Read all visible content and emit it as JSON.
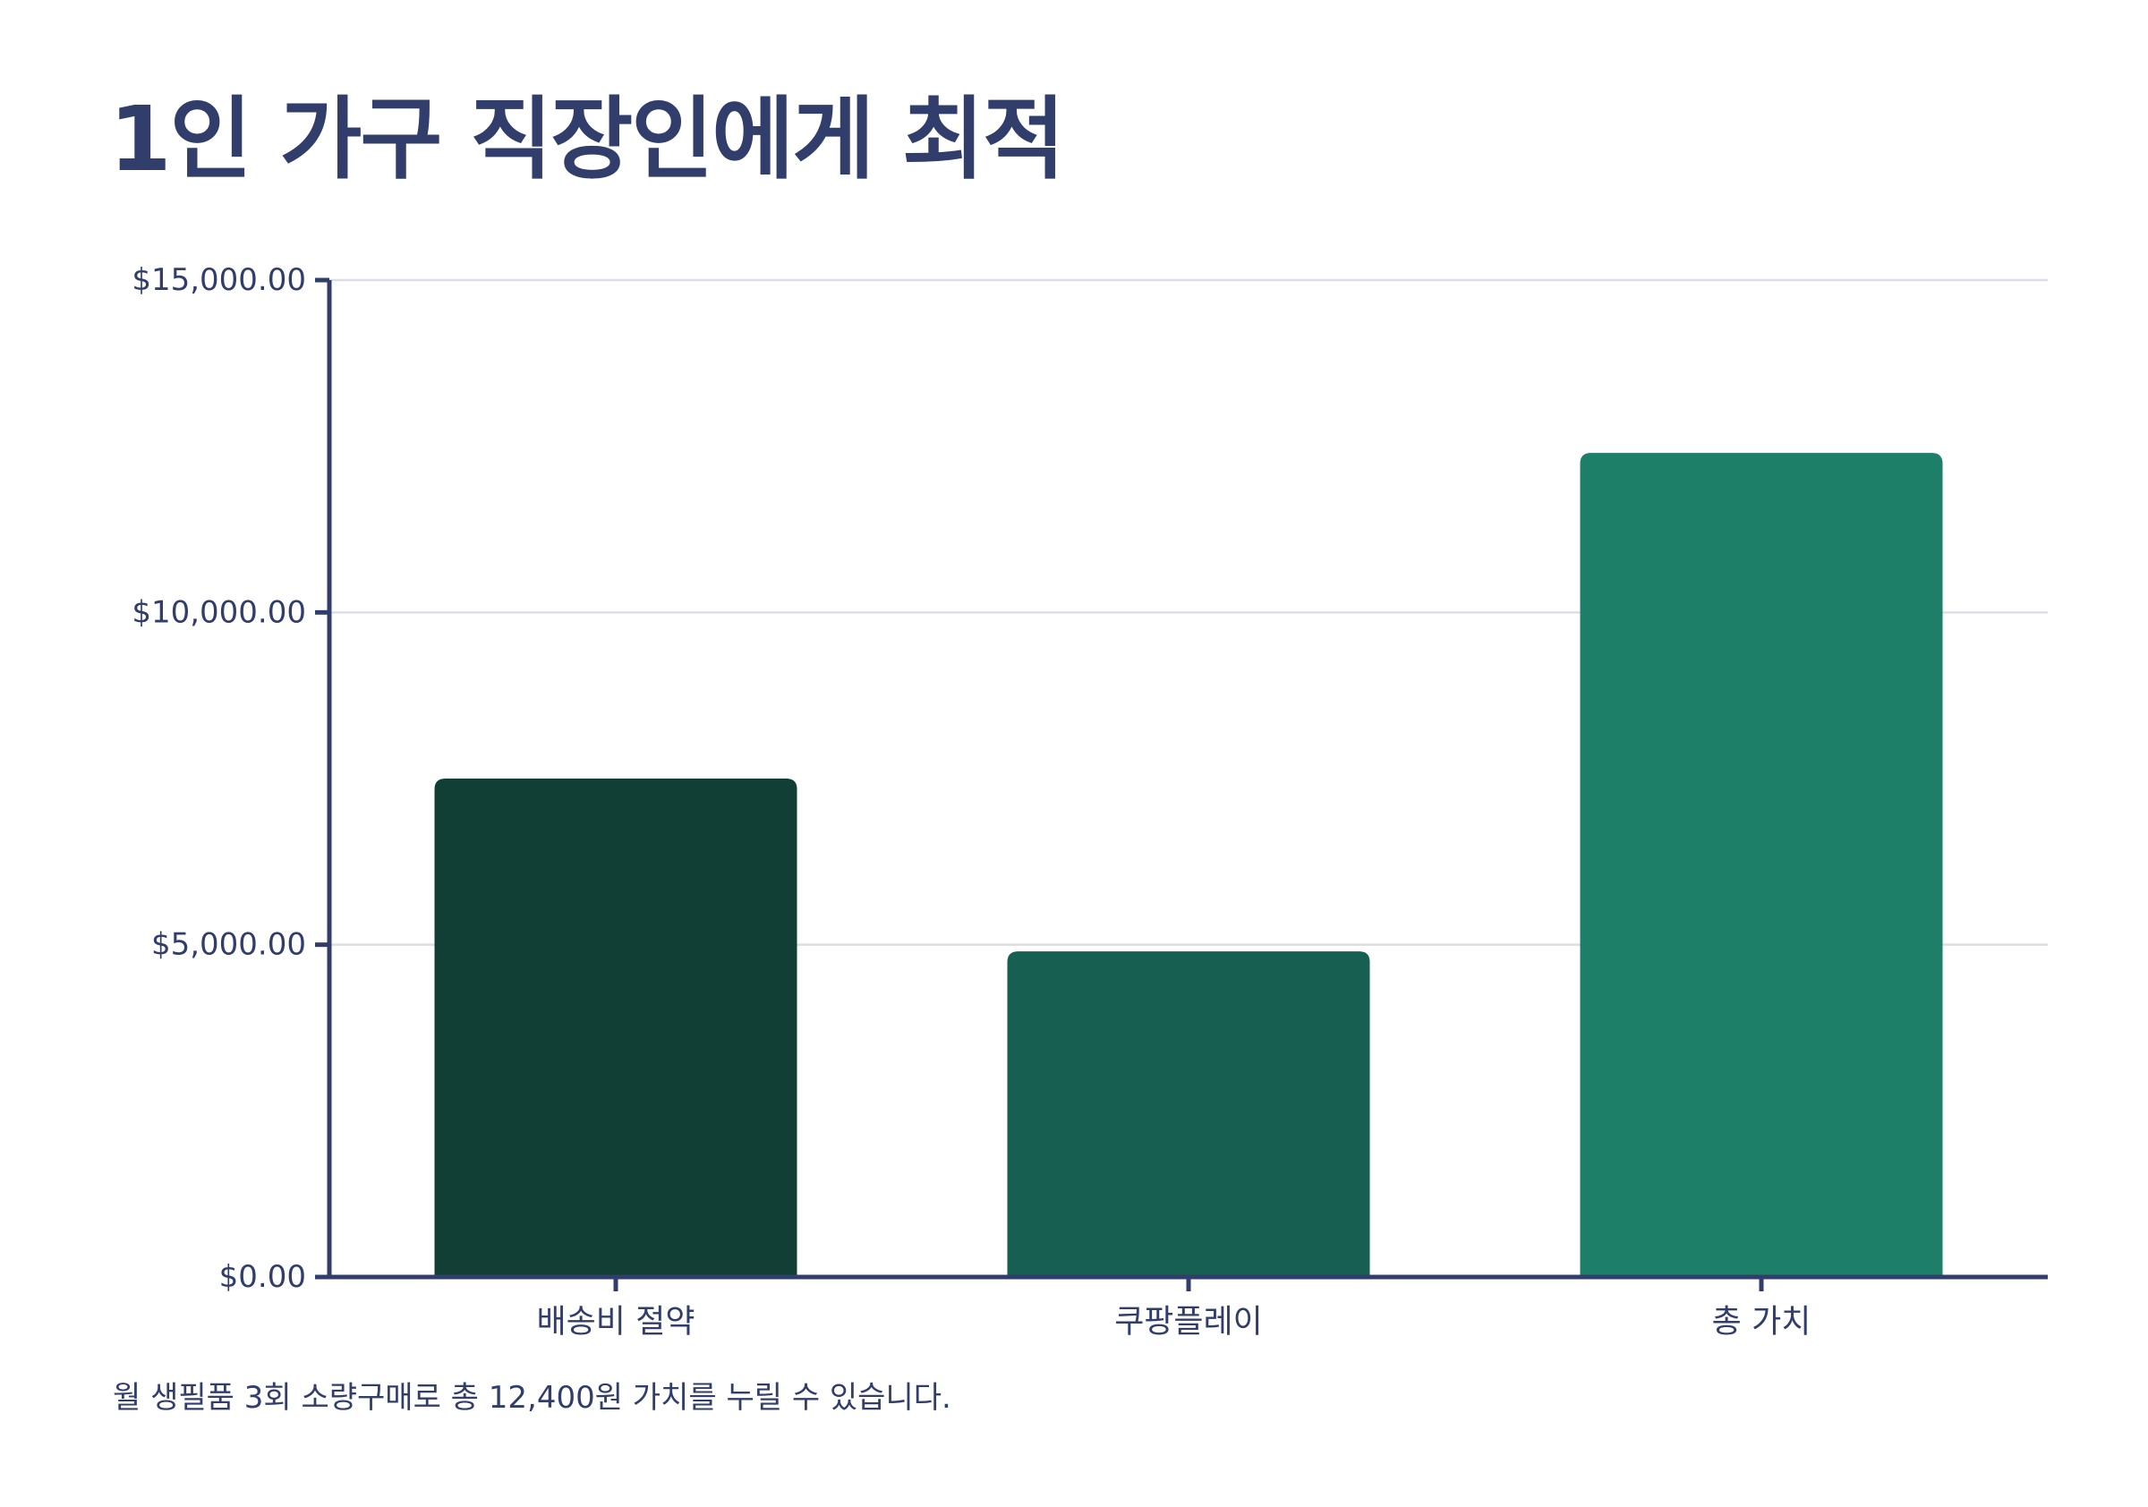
{
  "title": "1인 가구 직장인에게 최적",
  "caption": "월 생필품 3회 소량구매로 총 12,400원 가치를 누릴 수 있습니다.",
  "chart_data": {
    "type": "bar",
    "categories": [
      "배송비 절약",
      "쿠팡플레이",
      "총 가치"
    ],
    "values": [
      7500,
      4900,
      12400
    ],
    "bar_colors": [
      "#113f36",
      "#175f50",
      "#1d7f67"
    ],
    "ylim": [
      0,
      15000
    ],
    "y_ticks": [
      0,
      5000,
      10000,
      15000
    ],
    "y_tick_labels": [
      "$0.00",
      "$5,000.00",
      "$10,000.00",
      "$15,000.00"
    ],
    "grid": true,
    "legend": "none"
  }
}
